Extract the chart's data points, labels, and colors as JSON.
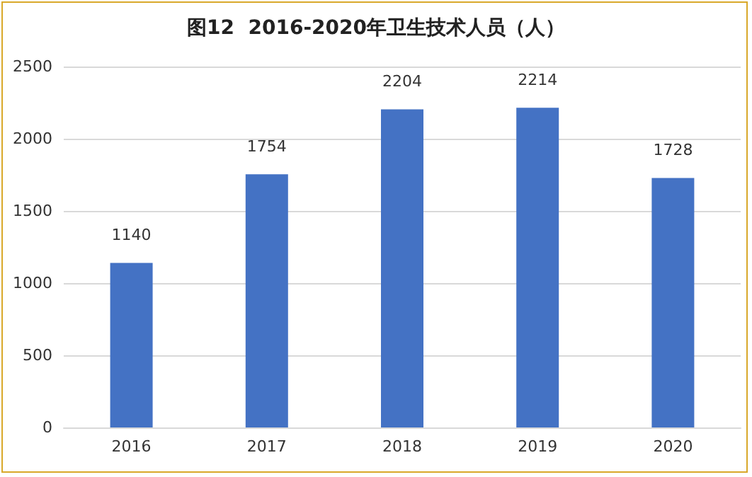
{
  "chart_data": {
    "type": "bar",
    "title": "图12  2016-2020年卫生技术人员（人）",
    "categories": [
      "2016",
      "2017",
      "2018",
      "2019",
      "2020"
    ],
    "values": [
      1140,
      1754,
      2204,
      2214,
      1728
    ],
    "color": "#4472c4",
    "ylim": [
      0,
      2500
    ],
    "yticks": [
      0,
      500,
      1000,
      1500,
      2000,
      2500
    ],
    "grid": "y",
    "data_labels": true
  }
}
